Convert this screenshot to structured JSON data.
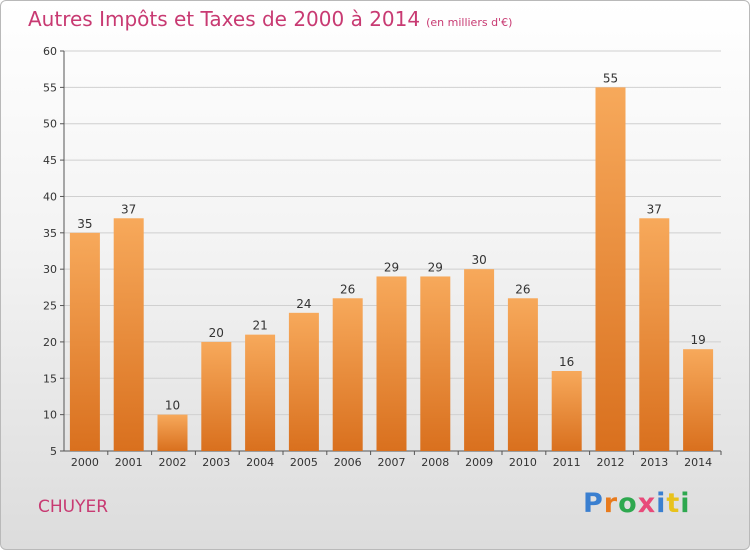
{
  "header": {
    "title": "Autres Impôts et Taxes de 2000 à 2014",
    "subtitle": "(en milliers d'€)"
  },
  "commune": "CHUYER",
  "logo": {
    "text": "Proxiti",
    "colors": [
      "#3a7fd0",
      "#e87a1c",
      "#2ea84f",
      "#e84a7a",
      "#3a7fd0",
      "#e8c21c",
      "#2ea84f"
    ]
  },
  "colors": {
    "title": "#c83a72",
    "bar_light": "#f7a95b",
    "bar_dark": "#d9701e",
    "grid": "#d0d0d0"
  },
  "chart_data": {
    "type": "bar",
    "categories": [
      "2000",
      "2001",
      "2002",
      "2003",
      "2004",
      "2005",
      "2006",
      "2007",
      "2008",
      "2009",
      "2010",
      "2011",
      "2012",
      "2013",
      "2014"
    ],
    "values": [
      35,
      37,
      10,
      20,
      21,
      24,
      26,
      29,
      29,
      30,
      26,
      16,
      55,
      37,
      19
    ],
    "data_labels": [
      "35",
      "37",
      "10",
      "20",
      "21",
      "24",
      "26",
      "29",
      "29",
      "30",
      "26",
      "16",
      "55",
      "37",
      "19"
    ],
    "y_ticks": [
      "5",
      "10",
      "15",
      "20",
      "25",
      "30",
      "35",
      "40",
      "45",
      "50",
      "55",
      "60"
    ],
    "ylim": [
      5,
      60
    ],
    "grid": true,
    "legend": "none"
  }
}
